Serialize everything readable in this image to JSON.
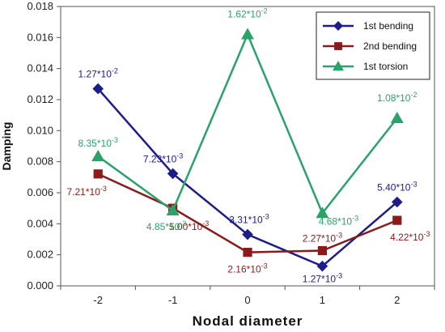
{
  "chart_data": {
    "type": "line",
    "xlabel": "Nodal diameter",
    "ylabel": "Damping",
    "categories": [
      "-2",
      "-1",
      "0",
      "1",
      "2"
    ],
    "x": [
      -2,
      -1,
      0,
      1,
      2
    ],
    "ylim": [
      0,
      0.018
    ],
    "yticks": [
      0.0,
      0.002,
      0.004,
      0.006,
      0.008,
      0.01,
      0.012,
      0.014,
      0.016,
      0.018
    ],
    "ytick_labels": [
      "0.000",
      "0.002",
      "0.004",
      "0.006",
      "0.008",
      "0.010",
      "0.012",
      "0.014",
      "0.016",
      "0.018"
    ],
    "grid": false,
    "legend": "top-right",
    "series": [
      {
        "name": "1st bending",
        "marker": "diamond",
        "color": "#1c1c8c",
        "values": [
          0.0127,
          0.00723,
          0.00331,
          0.00127,
          0.0054
        ],
        "label_mantissa": [
          "1.27",
          "7.23",
          "3.31",
          "1.27",
          "5.40"
        ],
        "label_exp": [
          "-2",
          "-3",
          "-3",
          "-3",
          "-3"
        ]
      },
      {
        "name": "2nd bending",
        "marker": "square",
        "color": "#8b1a1a",
        "values": [
          0.00721,
          0.005,
          0.00216,
          0.00227,
          0.00422
        ],
        "label_mantissa": [
          "7.21",
          "5.00",
          "2.16",
          "2.27",
          "4.22"
        ],
        "label_exp": [
          "-3",
          "-3",
          "-3",
          "-3",
          "-3"
        ]
      },
      {
        "name": "1st torsion",
        "marker": "triangle",
        "color": "#2aa36b",
        "values": [
          0.00835,
          0.00485,
          0.0162,
          0.00468,
          0.0108
        ],
        "label_mantissa": [
          "8.35",
          "4.85",
          "1.62",
          "4.68",
          "1.08"
        ],
        "label_exp": [
          "-3",
          "-3",
          "-2",
          "-3",
          "-2"
        ]
      }
    ],
    "label_connector": "*10"
  }
}
